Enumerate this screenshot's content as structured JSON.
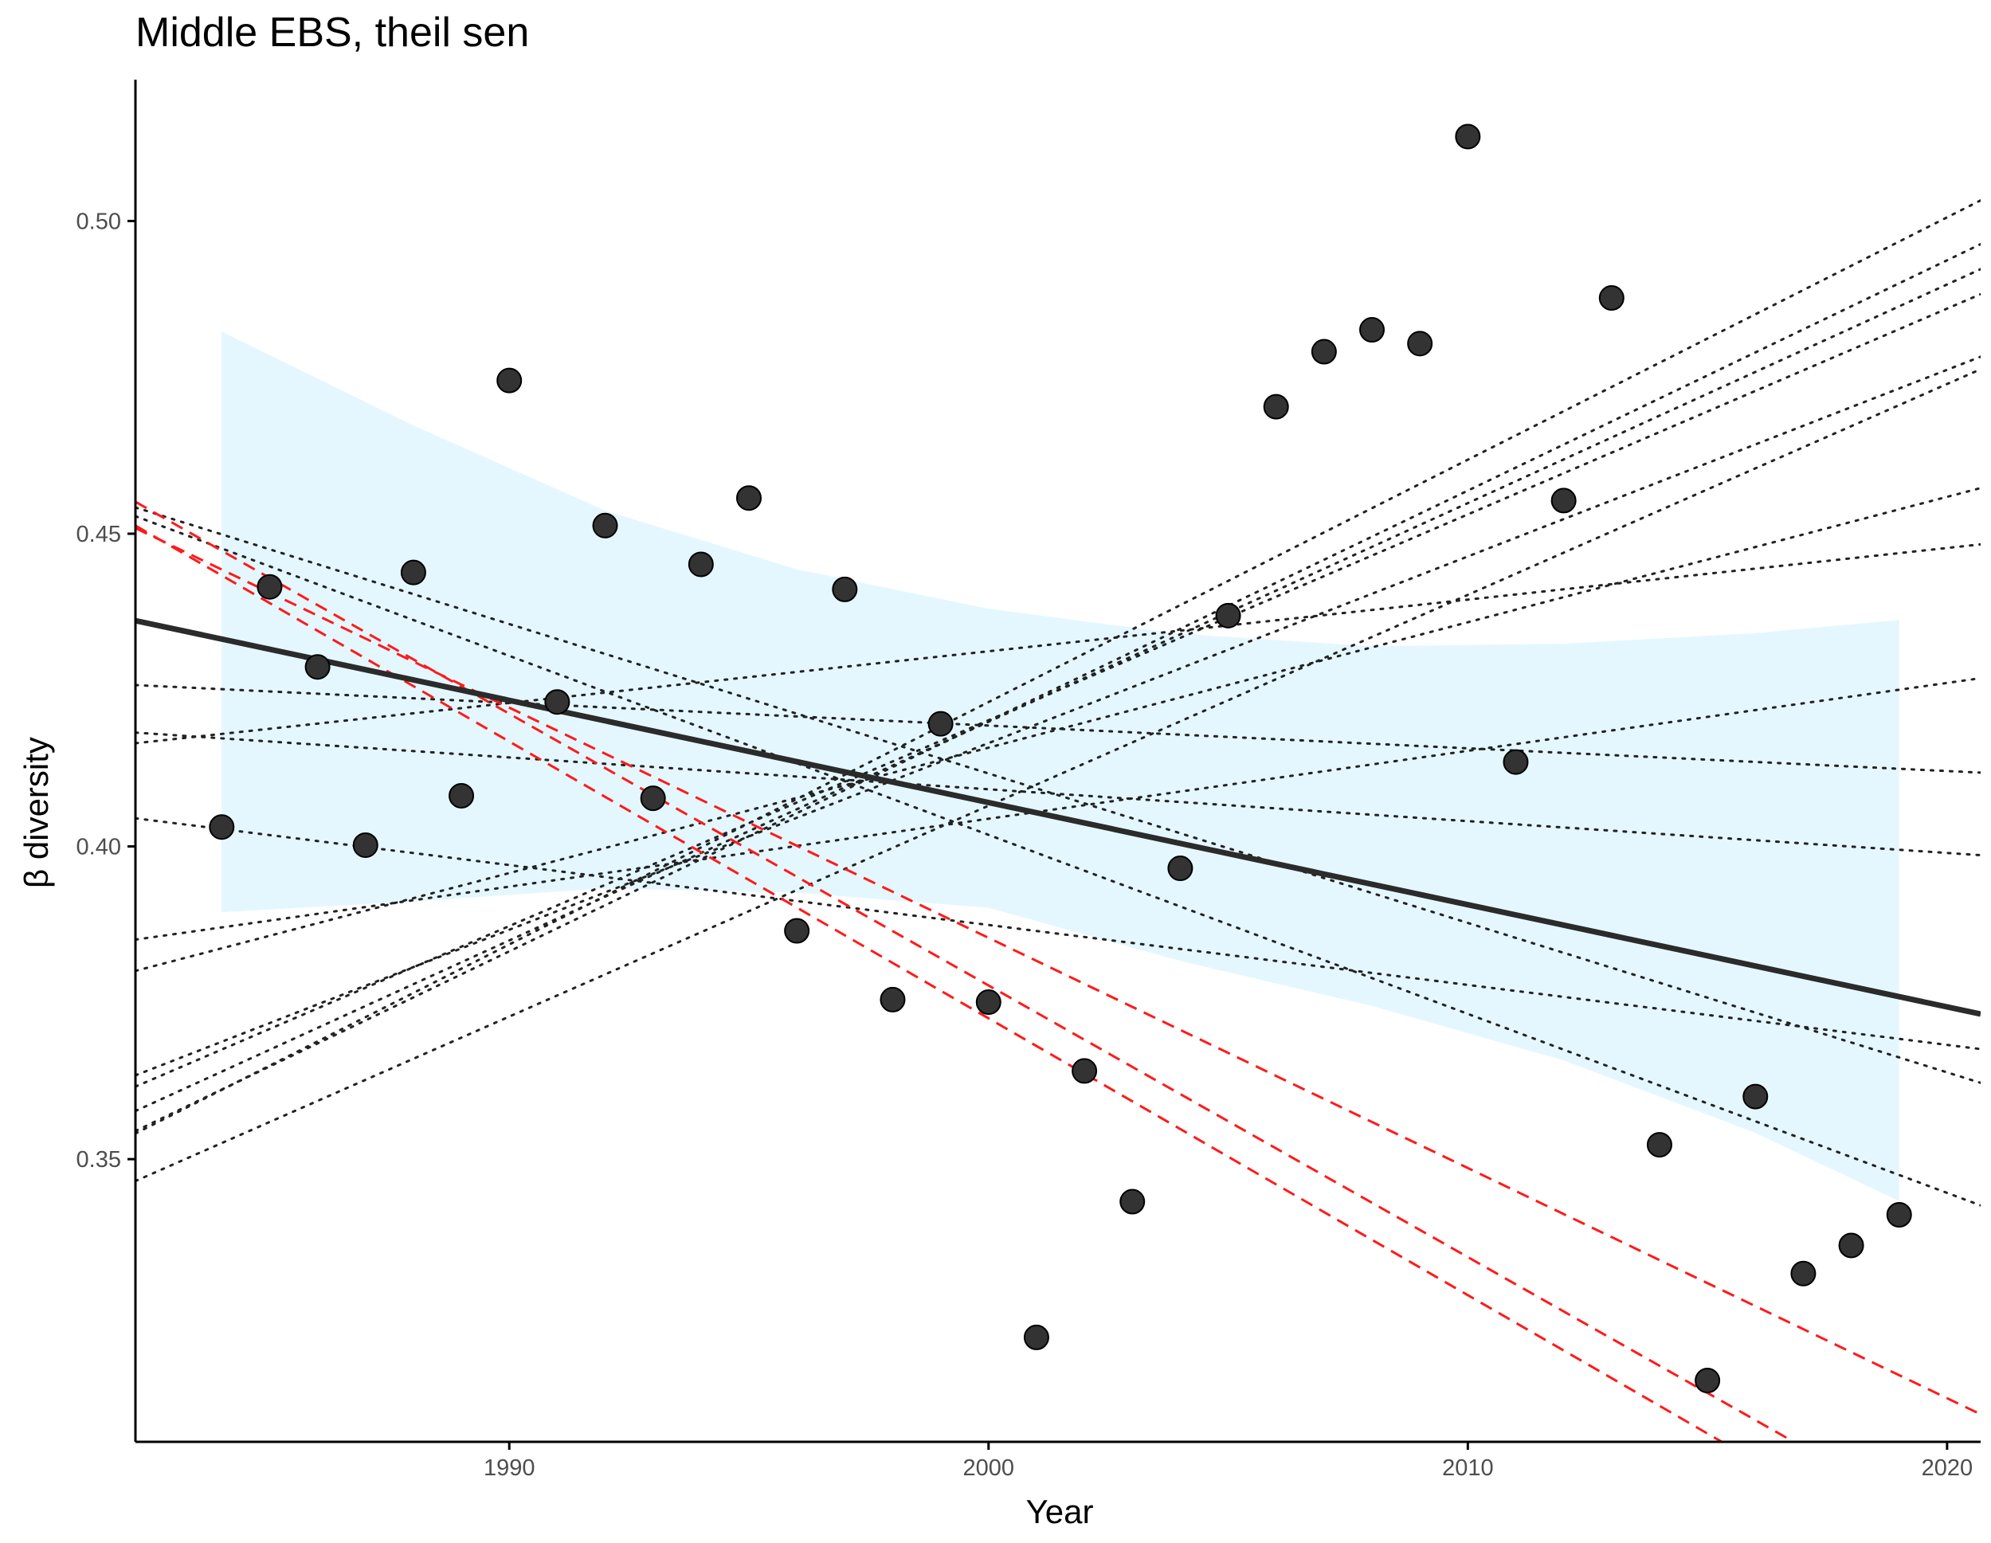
{
  "chart_data": {
    "type": "scatter",
    "title": "Middle EBS, theil sen",
    "xlabel": "Year",
    "ylabel": "β diversity",
    "xlim": [
      1982.2,
      2020.7
    ],
    "ylim": [
      0.3048,
      0.5226
    ],
    "xticks": [
      1990,
      2000,
      2010,
      2020
    ],
    "yticks": [
      0.35,
      0.4,
      0.45,
      0.5
    ],
    "xtick_labels": [
      "1990",
      "2000",
      "2010",
      "2020"
    ],
    "ytick_labels": [
      "0.35",
      "0.40",
      "0.45",
      "0.50"
    ],
    "grid": false,
    "points": [
      {
        "x": 1984,
        "y": 0.4031
      },
      {
        "x": 1985,
        "y": 0.4415
      },
      {
        "x": 1986,
        "y": 0.4287
      },
      {
        "x": 1987,
        "y": 0.4002
      },
      {
        "x": 1988,
        "y": 0.4438
      },
      {
        "x": 1989,
        "y": 0.4081
      },
      {
        "x": 1990,
        "y": 0.4745
      },
      {
        "x": 1991,
        "y": 0.4231
      },
      {
        "x": 1992,
        "y": 0.4513
      },
      {
        "x": 1993,
        "y": 0.4077
      },
      {
        "x": 1994,
        "y": 0.4451
      },
      {
        "x": 1995,
        "y": 0.4557
      },
      {
        "x": 1996,
        "y": 0.3865
      },
      {
        "x": 1997,
        "y": 0.4411
      },
      {
        "x": 1998,
        "y": 0.3755
      },
      {
        "x": 1999,
        "y": 0.4196
      },
      {
        "x": 2000,
        "y": 0.3751
      },
      {
        "x": 2001,
        "y": 0.3215
      },
      {
        "x": 2002,
        "y": 0.3641
      },
      {
        "x": 2003,
        "y": 0.3432
      },
      {
        "x": 2004,
        "y": 0.3965
      },
      {
        "x": 2005,
        "y": 0.4369
      },
      {
        "x": 2006,
        "y": 0.4703
      },
      {
        "x": 2007,
        "y": 0.4791
      },
      {
        "x": 2008,
        "y": 0.4826
      },
      {
        "x": 2009,
        "y": 0.4804
      },
      {
        "x": 2010,
        "y": 0.5135
      },
      {
        "x": 2011,
        "y": 0.4135
      },
      {
        "x": 2012,
        "y": 0.4553
      },
      {
        "x": 2013,
        "y": 0.4877
      },
      {
        "x": 2014,
        "y": 0.3523
      },
      {
        "x": 2015,
        "y": 0.3146
      },
      {
        "x": 2016,
        "y": 0.36
      },
      {
        "x": 2017,
        "y": 0.3317
      },
      {
        "x": 2018,
        "y": 0.3362
      },
      {
        "x": 2019,
        "y": 0.3411
      }
    ],
    "fit_line": {
      "x0": 1982.2,
      "y0": 0.4361,
      "x1": 2020.7,
      "y1": 0.3732
    },
    "confidence_band": {
      "x": [
        1984,
        1988,
        1992,
        1996,
        2000,
        2004,
        2008,
        2012,
        2016,
        2019
      ],
      "upper": [
        0.4823,
        0.4673,
        0.4537,
        0.4443,
        0.438,
        0.434,
        0.432,
        0.4324,
        0.4341,
        0.4362
      ],
      "lower": [
        0.3895,
        0.3912,
        0.3933,
        0.3926,
        0.3902,
        0.3817,
        0.3745,
        0.3658,
        0.3542,
        0.3433
      ]
    },
    "dotted_lines": [
      {
        "x0": 1982.2,
        "y0": 0.3541,
        "x1": 2020.7,
        "y1": 0.5033
      },
      {
        "x0": 1982.2,
        "y0": 0.3545,
        "x1": 2020.7,
        "y1": 0.4963
      },
      {
        "x0": 1982.2,
        "y0": 0.3577,
        "x1": 2020.7,
        "y1": 0.4923
      },
      {
        "x0": 1982.2,
        "y0": 0.3616,
        "x1": 2020.7,
        "y1": 0.4883
      },
      {
        "x0": 1982.2,
        "y0": 0.3634,
        "x1": 2020.7,
        "y1": 0.4783
      },
      {
        "x0": 1982.2,
        "y0": 0.3465,
        "x1": 2020.7,
        "y1": 0.4763
      },
      {
        "x0": 1982.2,
        "y0": 0.3801,
        "x1": 2020.7,
        "y1": 0.4573
      },
      {
        "x0": 1982.2,
        "y0": 0.3851,
        "x1": 2020.7,
        "y1": 0.4269
      },
      {
        "x0": 1982.2,
        "y0": 0.4165,
        "x1": 2020.7,
        "y1": 0.4483
      },
      {
        "x0": 1982.2,
        "y0": 0.4258,
        "x1": 2020.7,
        "y1": 0.4118
      },
      {
        "x0": 1982.2,
        "y0": 0.4182,
        "x1": 2020.7,
        "y1": 0.3986
      },
      {
        "x0": 1982.2,
        "y0": 0.4045,
        "x1": 2020.7,
        "y1": 0.3676
      },
      {
        "x0": 1982.2,
        "y0": 0.4542,
        "x1": 2020.7,
        "y1": 0.3622
      },
      {
        "x0": 1982.2,
        "y0": 0.4528,
        "x1": 2020.7,
        "y1": 0.3426
      }
    ],
    "dashed_lines": [
      {
        "x0": 1982.2,
        "y0": 0.4551,
        "x1": 2016.8,
        "y1": 0.3048
      },
      {
        "x0": 1982.2,
        "y0": 0.4513,
        "x1": 2015.3,
        "y1": 0.3048
      },
      {
        "x0": 1982.2,
        "y0": 0.4509,
        "x1": 2020.7,
        "y1": 0.3092
      }
    ],
    "colors": {
      "point_fill": "#333333",
      "point_stroke": "#000000",
      "fit_line": "#2b2b2b",
      "band": "#e4f7fe",
      "dotted": "#222222",
      "dashed": "#ff1a1a",
      "axis": "#000000"
    }
  }
}
